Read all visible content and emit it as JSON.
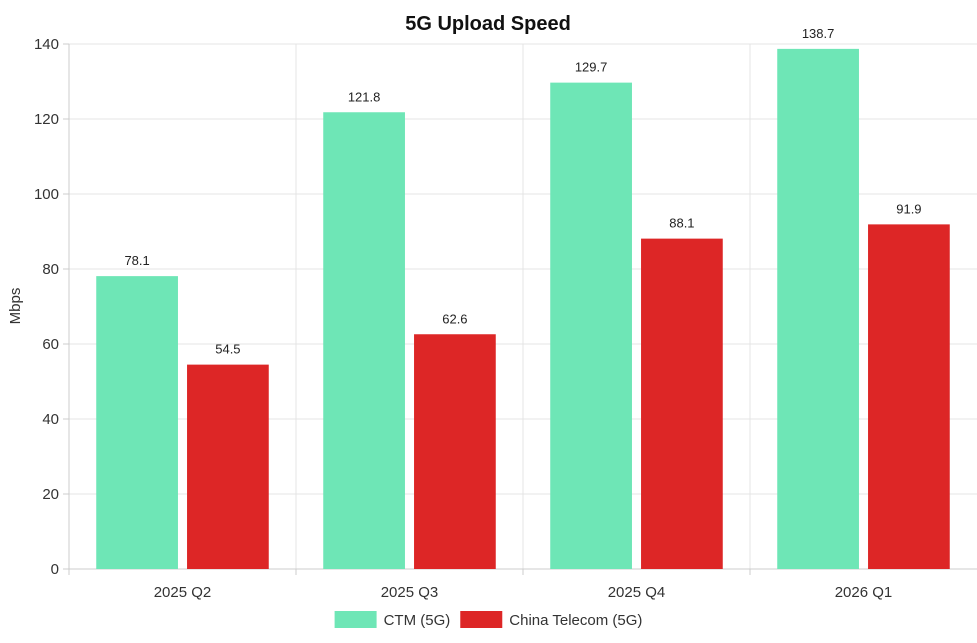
{
  "chart_data": {
    "type": "bar",
    "title": "5G Upload Speed",
    "xlabel": "",
    "ylabel": "Mbps",
    "categories": [
      "2025 Q2",
      "2025 Q3",
      "2025 Q4",
      "2026 Q1"
    ],
    "series": [
      {
        "name": "CTM (5G)",
        "color": "#6ee6b6",
        "values": [
          78.1,
          121.8,
          129.7,
          138.7
        ]
      },
      {
        "name": "China Telecom (5G)",
        "color": "#dd2626",
        "values": [
          54.5,
          62.6,
          88.1,
          91.9
        ]
      }
    ],
    "ylim": [
      0,
      140
    ],
    "yticks": [
      0,
      20,
      40,
      60,
      80,
      100,
      120,
      140
    ],
    "grid": true,
    "legend": "bottom-center"
  }
}
